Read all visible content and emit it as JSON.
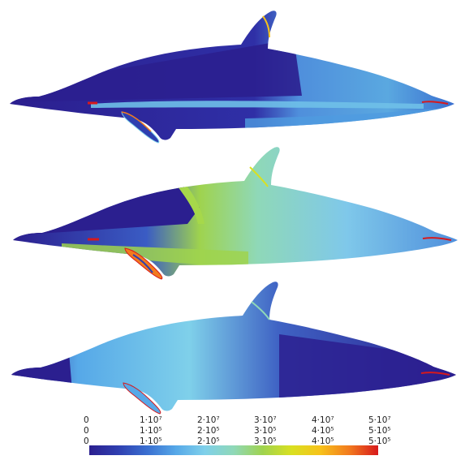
{
  "figure": {
    "panels": [
      {
        "id": "top",
        "name": "dolphin-stress-map-top"
      },
      {
        "id": "middle",
        "name": "dolphin-stress-map-middle"
      },
      {
        "id": "bottom",
        "name": "dolphin-stress-map-bottom"
      }
    ],
    "colorbar": {
      "colors": [
        "#2b1f8f",
        "#2f3fb0",
        "#3a6fd0",
        "#56a8e8",
        "#7fd0ea",
        "#8fd8b8",
        "#9fd34e",
        "#d9e021",
        "#f7c21a",
        "#f27a1e",
        "#d7191c"
      ],
      "rows": [
        [
          "0",
          "1·10⁷",
          "2·10⁷",
          "3·10⁷",
          "4·10⁷",
          "5·10⁷"
        ],
        [
          "0",
          "1·10⁵",
          "2·10⁵",
          "3·10⁵",
          "4·10⁵",
          "5·10⁵"
        ],
        [
          "0",
          "1·10⁵",
          "2·10⁵",
          "3·10⁵",
          "4·10⁵",
          "5·10⁵"
        ]
      ]
    }
  }
}
